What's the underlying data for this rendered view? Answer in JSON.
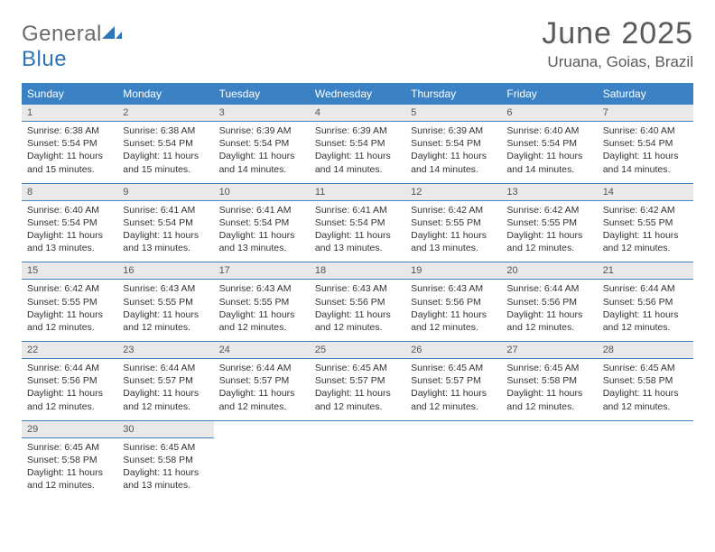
{
  "logo": {
    "word1": "General",
    "word2": "Blue"
  },
  "title": "June 2025",
  "location": "Uruana, Goias, Brazil",
  "colors": {
    "header_bg": "#3b82c4",
    "header_text": "#ffffff",
    "daynum_bg": "#e9e9e9",
    "rule": "#3b82c4",
    "logo_gray": "#6a6a6a",
    "logo_blue": "#2f74b5"
  },
  "weekdays": [
    "Sunday",
    "Monday",
    "Tuesday",
    "Wednesday",
    "Thursday",
    "Friday",
    "Saturday"
  ],
  "weeks": [
    [
      {
        "n": "1",
        "sr": "Sunrise: 6:38 AM",
        "ss": "Sunset: 5:54 PM",
        "dl": "Daylight: 11 hours and 15 minutes."
      },
      {
        "n": "2",
        "sr": "Sunrise: 6:38 AM",
        "ss": "Sunset: 5:54 PM",
        "dl": "Daylight: 11 hours and 15 minutes."
      },
      {
        "n": "3",
        "sr": "Sunrise: 6:39 AM",
        "ss": "Sunset: 5:54 PM",
        "dl": "Daylight: 11 hours and 14 minutes."
      },
      {
        "n": "4",
        "sr": "Sunrise: 6:39 AM",
        "ss": "Sunset: 5:54 PM",
        "dl": "Daylight: 11 hours and 14 minutes."
      },
      {
        "n": "5",
        "sr": "Sunrise: 6:39 AM",
        "ss": "Sunset: 5:54 PM",
        "dl": "Daylight: 11 hours and 14 minutes."
      },
      {
        "n": "6",
        "sr": "Sunrise: 6:40 AM",
        "ss": "Sunset: 5:54 PM",
        "dl": "Daylight: 11 hours and 14 minutes."
      },
      {
        "n": "7",
        "sr": "Sunrise: 6:40 AM",
        "ss": "Sunset: 5:54 PM",
        "dl": "Daylight: 11 hours and 14 minutes."
      }
    ],
    [
      {
        "n": "8",
        "sr": "Sunrise: 6:40 AM",
        "ss": "Sunset: 5:54 PM",
        "dl": "Daylight: 11 hours and 13 minutes."
      },
      {
        "n": "9",
        "sr": "Sunrise: 6:41 AM",
        "ss": "Sunset: 5:54 PM",
        "dl": "Daylight: 11 hours and 13 minutes."
      },
      {
        "n": "10",
        "sr": "Sunrise: 6:41 AM",
        "ss": "Sunset: 5:54 PM",
        "dl": "Daylight: 11 hours and 13 minutes."
      },
      {
        "n": "11",
        "sr": "Sunrise: 6:41 AM",
        "ss": "Sunset: 5:54 PM",
        "dl": "Daylight: 11 hours and 13 minutes."
      },
      {
        "n": "12",
        "sr": "Sunrise: 6:42 AM",
        "ss": "Sunset: 5:55 PM",
        "dl": "Daylight: 11 hours and 13 minutes."
      },
      {
        "n": "13",
        "sr": "Sunrise: 6:42 AM",
        "ss": "Sunset: 5:55 PM",
        "dl": "Daylight: 11 hours and 12 minutes."
      },
      {
        "n": "14",
        "sr": "Sunrise: 6:42 AM",
        "ss": "Sunset: 5:55 PM",
        "dl": "Daylight: 11 hours and 12 minutes."
      }
    ],
    [
      {
        "n": "15",
        "sr": "Sunrise: 6:42 AM",
        "ss": "Sunset: 5:55 PM",
        "dl": "Daylight: 11 hours and 12 minutes."
      },
      {
        "n": "16",
        "sr": "Sunrise: 6:43 AM",
        "ss": "Sunset: 5:55 PM",
        "dl": "Daylight: 11 hours and 12 minutes."
      },
      {
        "n": "17",
        "sr": "Sunrise: 6:43 AM",
        "ss": "Sunset: 5:55 PM",
        "dl": "Daylight: 11 hours and 12 minutes."
      },
      {
        "n": "18",
        "sr": "Sunrise: 6:43 AM",
        "ss": "Sunset: 5:56 PM",
        "dl": "Daylight: 11 hours and 12 minutes."
      },
      {
        "n": "19",
        "sr": "Sunrise: 6:43 AM",
        "ss": "Sunset: 5:56 PM",
        "dl": "Daylight: 11 hours and 12 minutes."
      },
      {
        "n": "20",
        "sr": "Sunrise: 6:44 AM",
        "ss": "Sunset: 5:56 PM",
        "dl": "Daylight: 11 hours and 12 minutes."
      },
      {
        "n": "21",
        "sr": "Sunrise: 6:44 AM",
        "ss": "Sunset: 5:56 PM",
        "dl": "Daylight: 11 hours and 12 minutes."
      }
    ],
    [
      {
        "n": "22",
        "sr": "Sunrise: 6:44 AM",
        "ss": "Sunset: 5:56 PM",
        "dl": "Daylight: 11 hours and 12 minutes."
      },
      {
        "n": "23",
        "sr": "Sunrise: 6:44 AM",
        "ss": "Sunset: 5:57 PM",
        "dl": "Daylight: 11 hours and 12 minutes."
      },
      {
        "n": "24",
        "sr": "Sunrise: 6:44 AM",
        "ss": "Sunset: 5:57 PM",
        "dl": "Daylight: 11 hours and 12 minutes."
      },
      {
        "n": "25",
        "sr": "Sunrise: 6:45 AM",
        "ss": "Sunset: 5:57 PM",
        "dl": "Daylight: 11 hours and 12 minutes."
      },
      {
        "n": "26",
        "sr": "Sunrise: 6:45 AM",
        "ss": "Sunset: 5:57 PM",
        "dl": "Daylight: 11 hours and 12 minutes."
      },
      {
        "n": "27",
        "sr": "Sunrise: 6:45 AM",
        "ss": "Sunset: 5:58 PM",
        "dl": "Daylight: 11 hours and 12 minutes."
      },
      {
        "n": "28",
        "sr": "Sunrise: 6:45 AM",
        "ss": "Sunset: 5:58 PM",
        "dl": "Daylight: 11 hours and 12 minutes."
      }
    ],
    [
      {
        "n": "29",
        "sr": "Sunrise: 6:45 AM",
        "ss": "Sunset: 5:58 PM",
        "dl": "Daylight: 11 hours and 12 minutes."
      },
      {
        "n": "30",
        "sr": "Sunrise: 6:45 AM",
        "ss": "Sunset: 5:58 PM",
        "dl": "Daylight: 11 hours and 13 minutes."
      },
      null,
      null,
      null,
      null,
      null
    ]
  ]
}
